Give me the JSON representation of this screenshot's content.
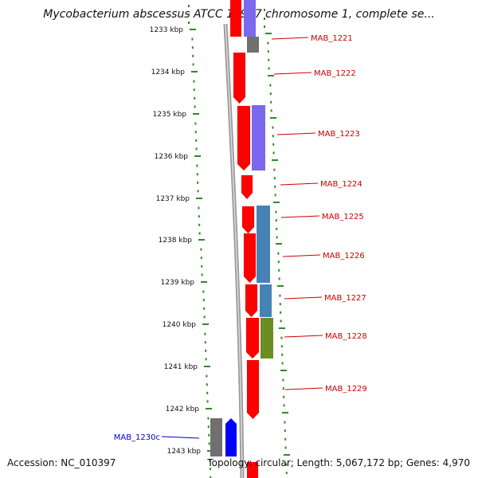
{
  "map": {
    "title": "Mycobacterium abscessus ATCC 19977 chromosome 1, complete se...",
    "ticks": [
      "1233 kbp",
      "1234 kbp",
      "1235 kbp",
      "1236 kbp",
      "1237 kbp",
      "1238 kbp",
      "1239 kbp",
      "1240 kbp",
      "1241 kbp",
      "1242 kbp",
      "1243 kbp"
    ],
    "genes": [
      {
        "label": "MAB_1221",
        "strand": "forward"
      },
      {
        "label": "MAB_1222",
        "strand": "forward"
      },
      {
        "label": "MAB_1223",
        "strand": "forward"
      },
      {
        "label": "MAB_1224",
        "strand": "forward"
      },
      {
        "label": "MAB_1225",
        "strand": "forward"
      },
      {
        "label": "MAB_1226",
        "strand": "forward"
      },
      {
        "label": "MAB_1227",
        "strand": "forward"
      },
      {
        "label": "MAB_1228",
        "strand": "forward"
      },
      {
        "label": "MAB_1229",
        "strand": "forward"
      },
      {
        "label": "MAB_1230c",
        "strand": "reverse"
      }
    ],
    "colors": {
      "forward_label": "#cc0000",
      "reverse_label": "#0000cc",
      "cds": "#ff0000",
      "reverse_cds": "#0000ff",
      "cog_purple": "#7b68ee",
      "cog_blue": "#4682b4",
      "cog_olive": "#6b8e23",
      "cog_gray": "#707070",
      "backbone": "#888888",
      "tick_mark": "#2e8b22"
    }
  },
  "footer": {
    "accession": "Accession: NC_010397",
    "info": "Topology: circular; Length: 5,067,172 bp; Genes: 4,970"
  }
}
